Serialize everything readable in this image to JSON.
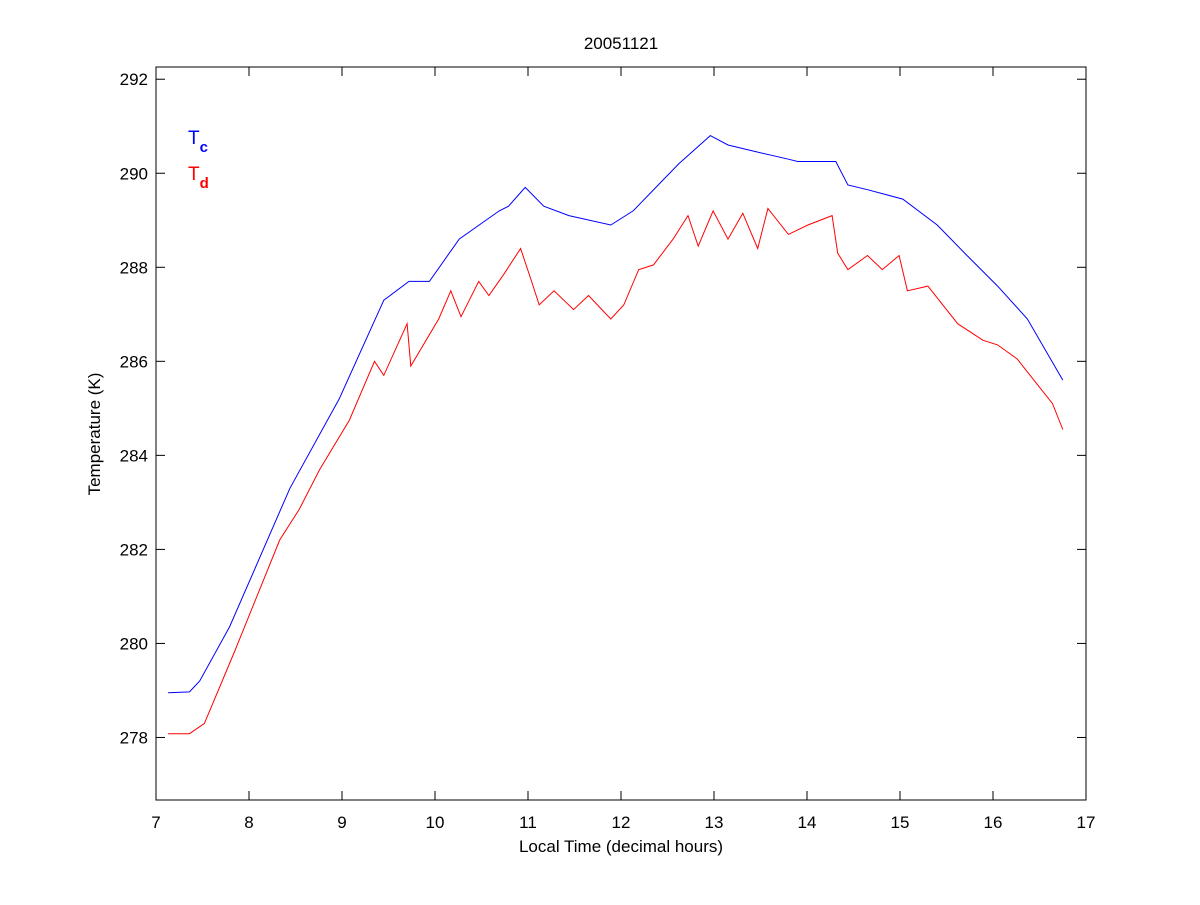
{
  "chart_data": {
    "type": "line",
    "title": "20051121",
    "xlabel": "Local Time (decimal hours)",
    "ylabel": "Temperature (K)",
    "xlim": [
      7,
      17
    ],
    "ylim": [
      276.67,
      292.26
    ],
    "xticks": [
      7,
      8,
      9,
      10,
      11,
      12,
      13,
      14,
      15,
      16,
      17
    ],
    "yticks": [
      278,
      280,
      282,
      284,
      286,
      288,
      290,
      292
    ],
    "grid": false,
    "legend": {
      "placement": "top-left",
      "entries": [
        {
          "base": "T",
          "sub": "c",
          "color": "#0000ff"
        },
        {
          "base": "T",
          "sub": "d",
          "color": "#ff0000"
        }
      ]
    },
    "series": [
      {
        "name": "Tc",
        "color": "#0000ff",
        "x": [
          7.13,
          7.36,
          7.47,
          7.79,
          8.44,
          8.97,
          9.45,
          9.72,
          9.94,
          10.26,
          10.69,
          10.79,
          10.97,
          11.17,
          11.44,
          11.89,
          12.13,
          12.4,
          12.62,
          12.96,
          13.15,
          13.47,
          13.8,
          13.9,
          14.31,
          14.44,
          14.65,
          15.03,
          15.4,
          15.72,
          16.05,
          16.37,
          16.75
        ],
        "y": [
          278.95,
          278.97,
          279.2,
          280.35,
          283.3,
          285.2,
          287.3,
          287.7,
          287.7,
          288.6,
          289.2,
          289.3,
          289.7,
          289.3,
          289.1,
          288.9,
          289.2,
          289.75,
          290.2,
          290.8,
          290.6,
          290.45,
          290.3,
          290.25,
          290.25,
          289.75,
          289.65,
          289.45,
          288.9,
          288.25,
          287.6,
          286.9,
          285.6
        ]
      },
      {
        "name": "Td",
        "color": "#ff0000",
        "x": [
          7.13,
          7.36,
          7.52,
          7.85,
          8.33,
          8.54,
          8.76,
          9.08,
          9.35,
          9.45,
          9.7,
          9.74,
          10.04,
          10.17,
          10.28,
          10.47,
          10.58,
          10.74,
          10.92,
          11.03,
          11.12,
          11.28,
          11.49,
          11.65,
          11.89,
          12.03,
          12.19,
          12.35,
          12.56,
          12.72,
          12.83,
          12.99,
          13.15,
          13.31,
          13.47,
          13.58,
          13.8,
          14.01,
          14.27,
          14.33,
          14.44,
          14.65,
          14.81,
          14.99,
          15.08,
          15.3,
          15.46,
          15.62,
          15.89,
          16.05,
          16.26,
          16.48,
          16.64,
          16.75
        ],
        "y": [
          278.08,
          278.08,
          278.3,
          279.85,
          282.2,
          282.85,
          283.7,
          284.75,
          286.0,
          285.7,
          286.8,
          285.9,
          286.9,
          287.5,
          286.95,
          287.7,
          287.4,
          287.85,
          288.4,
          287.75,
          287.2,
          287.5,
          287.1,
          287.4,
          286.9,
          287.2,
          287.95,
          288.05,
          288.6,
          289.1,
          288.45,
          289.2,
          288.6,
          289.15,
          288.4,
          289.25,
          288.7,
          288.9,
          289.1,
          288.3,
          287.95,
          288.25,
          287.95,
          288.25,
          287.5,
          287.6,
          287.2,
          286.8,
          286.45,
          286.35,
          286.05,
          285.5,
          285.1,
          284.55
        ]
      }
    ]
  }
}
